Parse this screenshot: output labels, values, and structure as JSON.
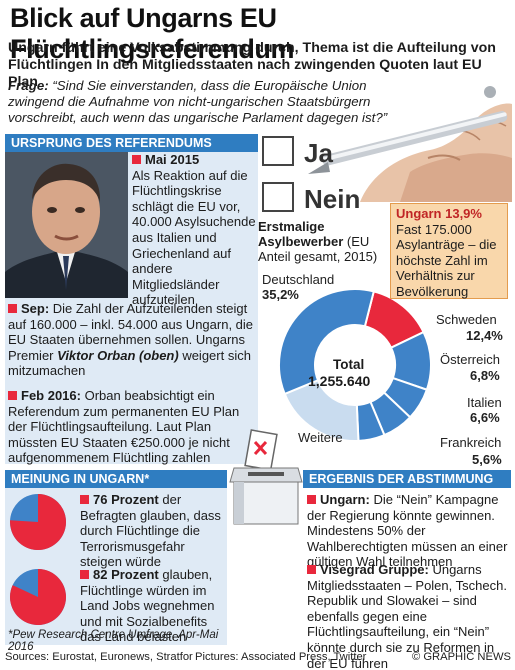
{
  "header": {
    "title": "Blick auf Ungarns EU Flüchtlingsreferendum",
    "subtitle": "Ungarn führt eine Volksabstimmung durch, Thema ist die Aufteilung von Flüchtlingen In den Mitgliedsstaaten nach zwingenden Quoten laut EU Plan"
  },
  "question": {
    "label": "Frage:",
    "text": " “Sind Sie einverstanden, dass die Europäische Union zwingend die Aufnahme von nicht-ungarischen Staatsbürgern vorschreibt, auch wenn das ungarische Parlament dagegen ist?”"
  },
  "ballot": {
    "ja": "Ja",
    "nein": "Nein"
  },
  "ursprung": {
    "heading": "URSPRUNG DES REFERENDUMS",
    "mai_date": "Mai 2015",
    "mai_text": "Als Reaktion auf die Flüchtlingskrise schlägt die EU vor, 40.000 Asylsuchende aus Italien und Griechenland auf andere Mitgliedsländer aufzuteilen",
    "sep_date": "Sep:",
    "sep_text_1": " Die Zahl der Aufzuteilenden steigt auf 160.000 – inkl. 54.000 aus Ungarn, die EU Staaten übernehmen sollen. Ungarns Premier ",
    "sep_name": "Viktor Orban (oben)",
    "sep_text_2": " weigert sich mitzumachen",
    "feb_date": "Feb 2016:",
    "feb_text": " Orban beabsichtigt ein Referendum zum permanenten EU Plan der Flüchtlingsaufteilung. Laut Plan müssten EU Staaten €250.000 je nicht aufgenommenem Flüchtling zahlen"
  },
  "asyl": {
    "title_bold": "Erstmalige Asylbewerber",
    "title_rest": " (EU Anteil gesamt, 2015)",
    "total_label": "Total",
    "total_value": "1,255.640",
    "ungarn_head": "Ungarn 13,9%",
    "ungarn_text": "Fast 175.000 Asylanträge – die höchste Zahl im Verhältnis zur Bevölkerung",
    "labels": {
      "deutschland": "Deutschland",
      "deutschland_pct": "35,2%",
      "schweden": "Schweden",
      "schweden_pct": "12,4%",
      "oesterreich": "Österreich",
      "oesterreich_pct": "6,8%",
      "italien": "Italien",
      "italien_pct": "6,6%",
      "frankreich": "Frankreich",
      "frankreich_pct": "5,6%",
      "weitere": "Weitere"
    },
    "colors": {
      "ungarn": "#e8283c",
      "blue": "#3f83c8",
      "light": "#c9dcef"
    }
  },
  "chart_data": {
    "type": "pie",
    "title": "Erstmalige Asylbewerber (EU Anteil gesamt, 2015)",
    "categories": [
      "Ungarn",
      "Schweden",
      "Österreich",
      "Italien",
      "Frankreich",
      "Weitere",
      "Deutschland"
    ],
    "values": [
      13.9,
      12.4,
      6.8,
      6.6,
      5.6,
      19.5,
      35.2
    ],
    "total": "1,255.640"
  },
  "meinung": {
    "heading": "MEINUNG IN UNGARN*",
    "p1_bold": "76 Prozent",
    "p1_text": " der Befragten glauben, dass durch Flüchtlinge die Terrorismusgefahr steigen würde",
    "p2_bold": "82 Prozent",
    "p2_text": " glauben, Flüchtlinge würden im Land Jobs wegnehmen und mit Sozialbenefits das Land belasten",
    "note": "*Pew Research Centre Umfrage, Apr-Mai 2016",
    "pie1": 76,
    "pie2": 82
  },
  "ergebnis": {
    "heading": "ERGEBNIS DER ABSTIMMUNG",
    "u_bold": "Ungarn:",
    "u_text": " Die “Nein” Kampagne der Regierung könnte gewinnen. Mindestens 50% der Wahlberechtigten müssen an einer gültigen Wahl teilnehmen",
    "v_bold": "Visegrad Gruppe:",
    "v_text": " Ungarns Mitgliedsstaaten – Polen, Tschech. Republik und Slowakei – sind ebenfalls gegen eine Flüchtlingsaufteilung, ein “Nein” könnte durch sie zu Reformen in der EU führen"
  },
  "footer": {
    "sources": "Sources: Eurostat, Euronews, Stratfor",
    "pictures": "Pictures: Associated Press, Twitter",
    "brand": "© GRAPHIC NEWS"
  }
}
